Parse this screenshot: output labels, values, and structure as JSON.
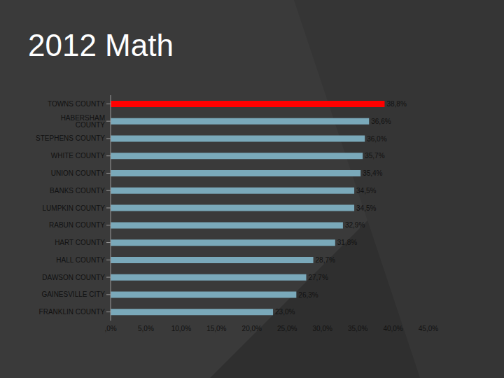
{
  "chart_data": {
    "type": "bar",
    "title": "2012 Math",
    "orientation": "horizontal",
    "data_labels": true,
    "categories": [
      "TOWNS COUNTY",
      "HABERSHAM COUNTY",
      "STEPHENS COUNTY",
      "WHITE COUNTY",
      "UNION COUNTY",
      "BANKS COUNTY",
      "LUMPKIN COUNTY",
      "RABUN COUNTY",
      "HART COUNTY",
      "HALL COUNTY",
      "DAWSON COUNTY",
      "GAINESVILLE CITY",
      "FRANKLIN COUNTY"
    ],
    "values": [
      38.8,
      36.6,
      36.0,
      35.7,
      35.4,
      34.5,
      34.5,
      32.9,
      31.8,
      28.7,
      27.7,
      26.3,
      23.0
    ],
    "value_labels": [
      "38,8%",
      "36,6%",
      "36,0%",
      "35,7%",
      "35,4%",
      "34,5%",
      "34,5%",
      "32,9%",
      "31,8%",
      "28,7%",
      "27,7%",
      "26,3%",
      "23,0%"
    ],
    "colors": [
      "#ff0000",
      "#7aa9ba",
      "#7aa9ba",
      "#7aa9ba",
      "#7aa9ba",
      "#7aa9ba",
      "#7aa9ba",
      "#7aa9ba",
      "#7aa9ba",
      "#7aa9ba",
      "#7aa9ba",
      "#7aa9ba",
      "#7aa9ba"
    ],
    "xlim": [
      0,
      45
    ],
    "xticks": [
      {
        "value": 0,
        "label": ",0%"
      },
      {
        "value": 5,
        "label": "5,0%"
      },
      {
        "value": 10,
        "label": "10,0%"
      },
      {
        "value": 15,
        "label": "15,0%"
      },
      {
        "value": 20,
        "label": "20,0%"
      },
      {
        "value": 25,
        "label": "25,0%"
      },
      {
        "value": 30,
        "label": "30,0%"
      },
      {
        "value": 35,
        "label": "35,0%"
      },
      {
        "value": 40,
        "label": "40,0%"
      },
      {
        "value": 45,
        "label": "45,0%"
      }
    ],
    "grid": false
  }
}
